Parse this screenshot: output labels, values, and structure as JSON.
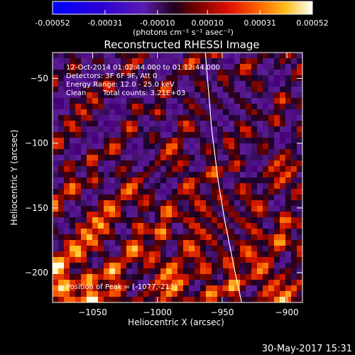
{
  "colorbar": {
    "tick_labels": [
      "-0.00052",
      "-0.00031",
      "-0.00010",
      "0.00010",
      "0.00031",
      "0.00052"
    ],
    "tick_values": [
      -0.00052,
      -0.00031,
      -0.0001,
      0.0001,
      0.00031,
      0.00052
    ],
    "range": [
      -0.00052,
      0.00052
    ],
    "units": "(photons cm⁻² s⁻¹ asec⁻²)",
    "colormap": "blue-purple-red-yellow-white"
  },
  "title": "Reconstructed RHESSI Image",
  "annotations": {
    "time_range": "12-Oct-2014 01:02:44.000 to 01:12:44.000",
    "detectors": "Detectors: 3F 6F 9F, Att 0",
    "energy_range": "Energy Range: 12.0 - 25.0 keV",
    "method": "Clean",
    "total_counts": "Total counts: 3.21E+03",
    "peak": "Position of Peak = [-1077,-213]"
  },
  "footer_timestamp": "30-May-2017 15:31",
  "chart_data": {
    "type": "heatmap",
    "title": "Reconstructed RHESSI Image",
    "xlabel": "Heliocentric X (arcsec)",
    "ylabel": "Heliocentric Y (arcsec)",
    "xlim": [
      -1081,
      -888
    ],
    "ylim": [
      -223,
      -30
    ],
    "x_ticks": [
      -1050,
      -1000,
      -950,
      -900
    ],
    "x_tick_labels": [
      "−1050",
      "−1000",
      "−950",
      "−900"
    ],
    "y_ticks": [
      -200,
      -150,
      -100,
      -50
    ],
    "y_tick_labels": [
      "−200",
      "−150",
      "−100",
      "−50"
    ],
    "peak_position": [
      -1077,
      -213
    ],
    "limb_curve_points": [
      [
        -963,
        -30
      ],
      [
        -958,
        -90
      ],
      [
        -953,
        -130
      ],
      [
        -948,
        -160
      ],
      [
        -940,
        -200
      ],
      [
        -935,
        -223
      ]
    ],
    "colors": {
      "axes": "#ffffff",
      "background": "#000000",
      "limb": "#ffffff"
    }
  }
}
